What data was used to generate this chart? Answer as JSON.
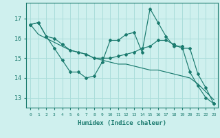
{
  "xlabel": "Humidex (Indice chaleur)",
  "ylabel": "",
  "bg_color": "#cff0ee",
  "grid_color": "#aaddda",
  "line_color": "#1a7a6e",
  "ylim": [
    12.5,
    17.8
  ],
  "xlim": [
    -0.5,
    23.5
  ],
  "yticks": [
    13,
    14,
    15,
    16,
    17
  ],
  "xticks": [
    0,
    1,
    2,
    3,
    4,
    5,
    6,
    7,
    8,
    9,
    10,
    11,
    12,
    13,
    14,
    15,
    16,
    17,
    18,
    19,
    20,
    21,
    22,
    23
  ],
  "line1_x": [
    0,
    1,
    2,
    3,
    4,
    5,
    6,
    7,
    8,
    9,
    10,
    11,
    12,
    13,
    14,
    15,
    16,
    17,
    18,
    19,
    20,
    21,
    22,
    23
  ],
  "line1_y": [
    16.7,
    16.8,
    16.1,
    15.5,
    14.9,
    14.3,
    14.3,
    14.0,
    14.1,
    14.8,
    15.9,
    15.9,
    16.2,
    16.3,
    15.3,
    17.5,
    16.8,
    16.1,
    15.6,
    15.6,
    14.3,
    13.6,
    13.0,
    12.7
  ],
  "line2_x": [
    0,
    1,
    2,
    3,
    4,
    5,
    6,
    7,
    8,
    9,
    10,
    11,
    12,
    13,
    14,
    15,
    16,
    17,
    18,
    19,
    20,
    21,
    22,
    23
  ],
  "line2_y": [
    16.7,
    16.2,
    16.0,
    15.8,
    15.6,
    15.4,
    15.3,
    15.2,
    15.0,
    14.9,
    14.8,
    14.7,
    14.7,
    14.6,
    14.5,
    14.4,
    14.4,
    14.3,
    14.2,
    14.1,
    14.0,
    13.7,
    13.3,
    12.9
  ],
  "line3_x": [
    0,
    1,
    2,
    3,
    4,
    5,
    6,
    7,
    8,
    9,
    10,
    11,
    12,
    13,
    14,
    15,
    16,
    17,
    18,
    19,
    20,
    21,
    22,
    23
  ],
  "line3_y": [
    16.7,
    16.8,
    16.1,
    16.0,
    15.7,
    15.4,
    15.3,
    15.2,
    15.0,
    15.0,
    15.0,
    15.1,
    15.2,
    15.3,
    15.5,
    15.6,
    15.9,
    15.9,
    15.7,
    15.5,
    15.5,
    14.2,
    13.5,
    12.7
  ],
  "line1_marker": "D",
  "line2_marker": "D",
  "line3_marker": "D"
}
